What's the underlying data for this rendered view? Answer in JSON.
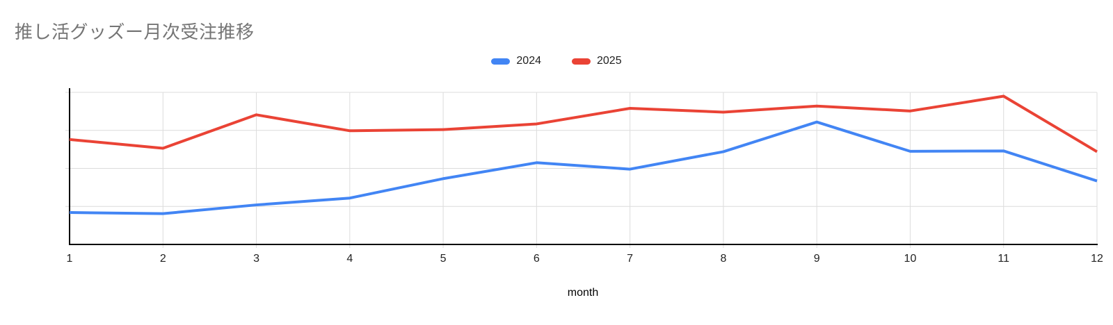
{
  "chart_data": {
    "type": "line",
    "title": "推し活グッズー月次受注推移",
    "xlabel": "month",
    "ylabel": "",
    "x": [
      "1",
      "2",
      "3",
      "4",
      "5",
      "6",
      "7",
      "8",
      "9",
      "10",
      "11",
      "12"
    ],
    "series": [
      {
        "name": "2024",
        "color": "#4285f4",
        "values": [
          84,
          81,
          104,
          122,
          173,
          215,
          198,
          244,
          322,
          245,
          246,
          167
        ]
      },
      {
        "name": "2025",
        "color": "#ea4335",
        "values": [
          276,
          253,
          341,
          299,
          302,
          317,
          358,
          348,
          364,
          351,
          390,
          244
        ]
      }
    ],
    "ylim": [
      0,
      400
    ],
    "gridline_step": 100,
    "y_axis_labels_visible": false,
    "grid": true,
    "legend_position": "top-center"
  },
  "colors": {
    "series_2024": "#4285f4",
    "series_2025": "#ea4335",
    "gridline": "#dcdcdc",
    "axis": "#000000",
    "title_text": "#757575",
    "tick_text": "#222222",
    "background": "#ffffff"
  }
}
